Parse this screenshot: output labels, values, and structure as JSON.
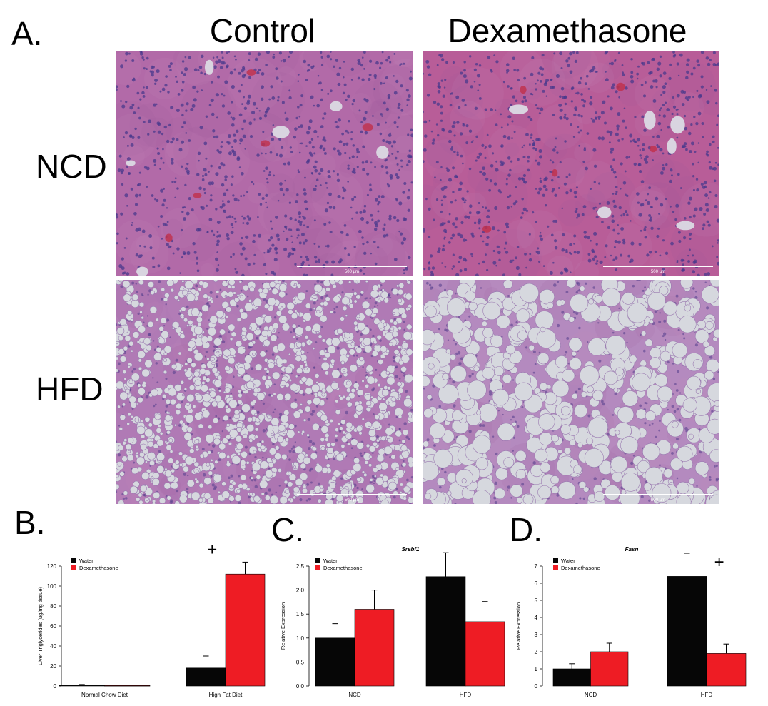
{
  "panel_a": {
    "letter": "A.",
    "columns": [
      "Control",
      "Dexamethasone"
    ],
    "rows": [
      "NCD",
      "HFD"
    ],
    "scale_bar_label": "500 µm",
    "images": [
      {
        "name": "ncd-control",
        "kind": "normal",
        "base": "#b26aa8"
      },
      {
        "name": "ncd-dex",
        "kind": "normal",
        "base": "#b85d98"
      },
      {
        "name": "hfd-control",
        "kind": "fatty-small",
        "base": "#b07ab5"
      },
      {
        "name": "hfd-dex",
        "kind": "fatty-large",
        "base": "#b48abf"
      }
    ]
  },
  "colors": {
    "water": "#060606",
    "dexamethasone": "#ee1c24",
    "error": "#000000"
  },
  "chart_data": [
    {
      "id": "B",
      "type": "bar",
      "letter": "B.",
      "title": "",
      "ylabel": "Liver Triglycerides (ug/mg tissue)",
      "ylim": [
        0,
        120
      ],
      "yticks": [
        0,
        20,
        40,
        60,
        80,
        100,
        120
      ],
      "categories": [
        "Normal Chow Diet",
        "High Fat Diet"
      ],
      "series": [
        {
          "name": "Water",
          "values": [
            1,
            18
          ],
          "errors": [
            0.5,
            12
          ]
        },
        {
          "name": "Dexamethasone",
          "values": [
            0.5,
            112
          ],
          "errors": [
            0.3,
            12
          ]
        }
      ],
      "annotations": [
        {
          "category": 1,
          "text": "+"
        }
      ],
      "legend": "top-left"
    },
    {
      "id": "C",
      "type": "bar",
      "letter": "C.",
      "title": "Srebf1",
      "ylabel": "Relative Expression",
      "ylim": [
        0,
        2.5
      ],
      "yticks": [
        0.0,
        0.5,
        1.0,
        1.5,
        2.0,
        2.5
      ],
      "tick_format": "fixed1",
      "categories": [
        "NCD",
        "HFD"
      ],
      "series": [
        {
          "name": "Water",
          "values": [
            1.0,
            2.28
          ],
          "errors": [
            0.3,
            0.5
          ]
        },
        {
          "name": "Dexamethasone",
          "values": [
            1.6,
            1.34
          ],
          "errors": [
            0.4,
            0.42
          ]
        }
      ],
      "annotations": [],
      "legend": "top-left"
    },
    {
      "id": "D",
      "type": "bar",
      "letter": "D.",
      "title": "Fasn",
      "ylabel": "Relative Expression",
      "ylim": [
        0,
        7
      ],
      "yticks": [
        0,
        1,
        2,
        3,
        4,
        5,
        6,
        7
      ],
      "categories": [
        "NCD",
        "HFD"
      ],
      "series": [
        {
          "name": "Water",
          "values": [
            1.0,
            6.4
          ],
          "errors": [
            0.3,
            1.35
          ]
        },
        {
          "name": "Dexamethasone",
          "values": [
            2.0,
            1.9
          ],
          "errors": [
            0.5,
            0.55
          ]
        }
      ],
      "annotations": [
        {
          "category": 1,
          "text": "+"
        }
      ],
      "legend": "top-left"
    }
  ]
}
